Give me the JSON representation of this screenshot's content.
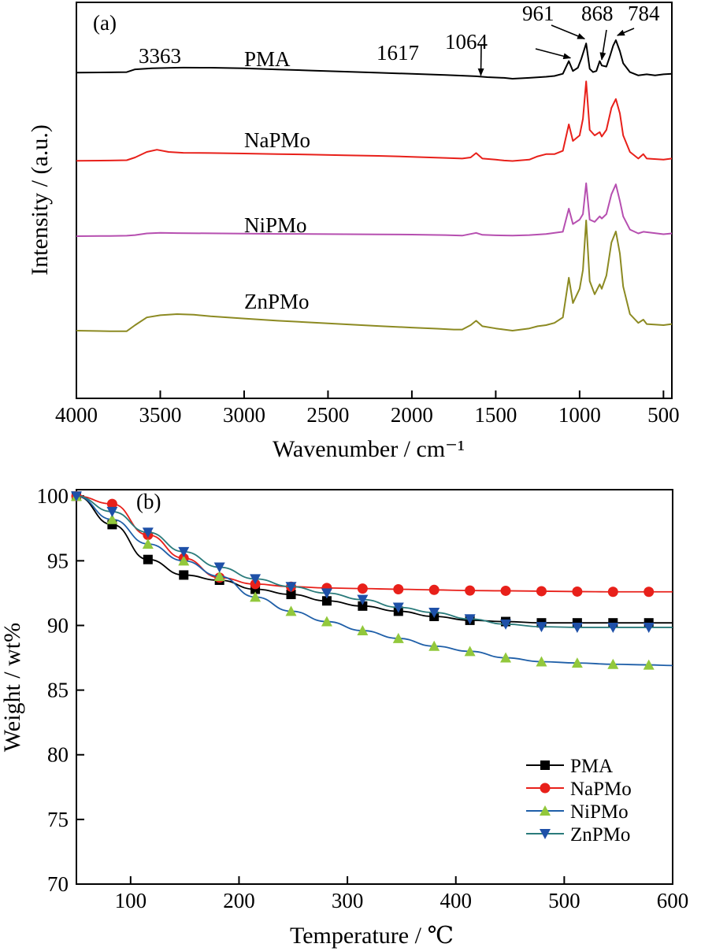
{
  "chart_data": [
    {
      "type": "line",
      "panel_label": "(a)",
      "xlabel": "Wavenumber / cm⁻¹",
      "ylabel": "Intensity / (a.u.)",
      "xlim": [
        4000,
        450
      ],
      "x_reversed": true,
      "x_ticks": [
        4000,
        3500,
        3000,
        2500,
        2000,
        1500,
        1000,
        500
      ],
      "y_ticks_shown": false,
      "grid": false,
      "legend": "none",
      "peak_annotations": [
        {
          "label": "3363",
          "wavenumber": 3363
        },
        {
          "label": "1617",
          "wavenumber": 1617
        },
        {
          "label": "1064",
          "wavenumber": 1064
        },
        {
          "label": "961",
          "wavenumber": 961
        },
        {
          "label": "868",
          "wavenumber": 868
        },
        {
          "label": "784",
          "wavenumber": 784
        }
      ],
      "series": [
        {
          "name": "PMA",
          "color": "#000000",
          "points": [
            [
              4000,
              0.055
            ],
            [
              3800,
              0.058
            ],
            [
              3700,
              0.06
            ],
            [
              3650,
              0.085
            ],
            [
              3550,
              0.095
            ],
            [
              3400,
              0.1
            ],
            [
              3363,
              0.101
            ],
            [
              3200,
              0.1
            ],
            [
              3000,
              0.094
            ],
            [
              2800,
              0.084
            ],
            [
              2600,
              0.074
            ],
            [
              2400,
              0.064
            ],
            [
              2200,
              0.054
            ],
            [
              2000,
              0.044
            ],
            [
              1800,
              0.034
            ],
            [
              1700,
              0.028
            ],
            [
              1617,
              0.022
            ],
            [
              1550,
              0.014
            ],
            [
              1450,
              0.008
            ],
            [
              1400,
              0.0
            ],
            [
              1300,
              0.008
            ],
            [
              1200,
              0.018
            ],
            [
              1150,
              0.025
            ],
            [
              1100,
              0.045
            ],
            [
              1064,
              0.16
            ],
            [
              1040,
              0.07
            ],
            [
              1010,
              0.1
            ],
            [
              990,
              0.18
            ],
            [
              961,
              0.32
            ],
            [
              940,
              0.09
            ],
            [
              920,
              0.06
            ],
            [
              900,
              0.07
            ],
            [
              880,
              0.16
            ],
            [
              868,
              0.12
            ],
            [
              840,
              0.11
            ],
            [
              820,
              0.2
            ],
            [
              800,
              0.3
            ],
            [
              784,
              0.35
            ],
            [
              760,
              0.25
            ],
            [
              740,
              0.14
            ],
            [
              700,
              0.06
            ],
            [
              650,
              0.03
            ],
            [
              600,
              0.04
            ],
            [
              550,
              0.03
            ],
            [
              500,
              0.04
            ],
            [
              450,
              0.045
            ]
          ]
        },
        {
          "name": "NaPMo",
          "color": "#e8201a",
          "points": [
            [
              4000,
              0.02
            ],
            [
              3800,
              0.022
            ],
            [
              3700,
              0.025
            ],
            [
              3650,
              0.05
            ],
            [
              3580,
              0.1
            ],
            [
              3520,
              0.12
            ],
            [
              3450,
              0.1
            ],
            [
              3363,
              0.092
            ],
            [
              3200,
              0.09
            ],
            [
              3000,
              0.086
            ],
            [
              2800,
              0.081
            ],
            [
              2600,
              0.076
            ],
            [
              2400,
              0.07
            ],
            [
              2200,
              0.064
            ],
            [
              2000,
              0.056
            ],
            [
              1800,
              0.046
            ],
            [
              1700,
              0.04
            ],
            [
              1650,
              0.05
            ],
            [
              1617,
              0.09
            ],
            [
              1580,
              0.04
            ],
            [
              1500,
              0.03
            ],
            [
              1450,
              0.022
            ],
            [
              1400,
              0.018
            ],
            [
              1300,
              0.03
            ],
            [
              1250,
              0.06
            ],
            [
              1200,
              0.08
            ],
            [
              1150,
              0.08
            ],
            [
              1100,
              0.11
            ],
            [
              1064,
              0.35
            ],
            [
              1040,
              0.2
            ],
            [
              1000,
              0.25
            ],
            [
              980,
              0.4
            ],
            [
              961,
              0.74
            ],
            [
              940,
              0.3
            ],
            [
              910,
              0.25
            ],
            [
              880,
              0.28
            ],
            [
              868,
              0.24
            ],
            [
              840,
              0.3
            ],
            [
              810,
              0.5
            ],
            [
              784,
              0.58
            ],
            [
              760,
              0.45
            ],
            [
              740,
              0.25
            ],
            [
              700,
              0.1
            ],
            [
              650,
              0.04
            ],
            [
              620,
              0.08
            ],
            [
              600,
              0.04
            ],
            [
              500,
              0.03
            ],
            [
              450,
              0.04
            ]
          ]
        },
        {
          "name": "NiPMo",
          "color": "#b64fb0",
          "points": [
            [
              4000,
              0.0
            ],
            [
              3800,
              0.002
            ],
            [
              3700,
              0.004
            ],
            [
              3650,
              0.01
            ],
            [
              3580,
              0.025
            ],
            [
              3500,
              0.03
            ],
            [
              3400,
              0.028
            ],
            [
              3200,
              0.026
            ],
            [
              3000,
              0.023
            ],
            [
              2800,
              0.021
            ],
            [
              2600,
              0.02
            ],
            [
              2400,
              0.018
            ],
            [
              2200,
              0.016
            ],
            [
              2000,
              0.014
            ],
            [
              1800,
              0.01
            ],
            [
              1700,
              0.005
            ],
            [
              1617,
              0.03
            ],
            [
              1580,
              0.012
            ],
            [
              1500,
              0.008
            ],
            [
              1400,
              0.005
            ],
            [
              1300,
              0.01
            ],
            [
              1200,
              0.02
            ],
            [
              1100,
              0.04
            ],
            [
              1064,
              0.25
            ],
            [
              1040,
              0.11
            ],
            [
              1000,
              0.15
            ],
            [
              980,
              0.2
            ],
            [
              961,
              0.48
            ],
            [
              940,
              0.15
            ],
            [
              910,
              0.13
            ],
            [
              880,
              0.18
            ],
            [
              868,
              0.16
            ],
            [
              840,
              0.2
            ],
            [
              810,
              0.38
            ],
            [
              784,
              0.47
            ],
            [
              760,
              0.32
            ],
            [
              740,
              0.18
            ],
            [
              700,
              0.06
            ],
            [
              650,
              0.025
            ],
            [
              620,
              0.04
            ],
            [
              500,
              0.018
            ],
            [
              450,
              0.025
            ]
          ]
        },
        {
          "name": "ZnPMo",
          "color": "#8c8a22",
          "points": [
            [
              4000,
              0.0
            ],
            [
              3800,
              -0.005
            ],
            [
              3700,
              -0.005
            ],
            [
              3650,
              0.05
            ],
            [
              3580,
              0.12
            ],
            [
              3500,
              0.14
            ],
            [
              3400,
              0.15
            ],
            [
              3300,
              0.145
            ],
            [
              3200,
              0.13
            ],
            [
              3000,
              0.11
            ],
            [
              2800,
              0.09
            ],
            [
              2600,
              0.074
            ],
            [
              2400,
              0.058
            ],
            [
              2200,
              0.042
            ],
            [
              2000,
              0.028
            ],
            [
              1850,
              0.018
            ],
            [
              1750,
              0.01
            ],
            [
              1700,
              0.01
            ],
            [
              1650,
              0.05
            ],
            [
              1617,
              0.09
            ],
            [
              1580,
              0.04
            ],
            [
              1500,
              0.02
            ],
            [
              1450,
              0.01
            ],
            [
              1400,
              0.0
            ],
            [
              1300,
              0.02
            ],
            [
              1250,
              0.04
            ],
            [
              1200,
              0.05
            ],
            [
              1150,
              0.07
            ],
            [
              1100,
              0.12
            ],
            [
              1064,
              0.48
            ],
            [
              1040,
              0.25
            ],
            [
              1000,
              0.38
            ],
            [
              980,
              0.55
            ],
            [
              961,
              1.0
            ],
            [
              940,
              0.45
            ],
            [
              910,
              0.33
            ],
            [
              880,
              0.42
            ],
            [
              868,
              0.38
            ],
            [
              840,
              0.5
            ],
            [
              810,
              0.8
            ],
            [
              784,
              0.9
            ],
            [
              760,
              0.7
            ],
            [
              740,
              0.4
            ],
            [
              700,
              0.15
            ],
            [
              650,
              0.07
            ],
            [
              620,
              0.1
            ],
            [
              600,
              0.06
            ],
            [
              500,
              0.05
            ],
            [
              450,
              0.06
            ]
          ]
        }
      ]
    },
    {
      "type": "line",
      "panel_label": "(b)",
      "xlabel": "Temperature / ℃",
      "ylabel": "Weight / wt%",
      "xlim": [
        50,
        600
      ],
      "ylim": [
        70,
        100.5
      ],
      "x_ticks": [
        100,
        200,
        300,
        400,
        500,
        600
      ],
      "y_ticks": [
        70,
        75,
        80,
        85,
        90,
        95,
        100
      ],
      "grid": false,
      "legend": "bottom-right",
      "series": [
        {
          "name": "PMA",
          "color": "#000000",
          "marker": "square",
          "x": [
            50,
            83,
            116,
            149,
            182,
            215,
            248,
            281,
            314,
            347,
            380,
            413,
            446,
            479,
            512,
            545,
            578,
            600
          ],
          "y": [
            100,
            97.8,
            95.1,
            93.9,
            93.5,
            92.8,
            92.4,
            91.9,
            91.5,
            91.1,
            90.7,
            90.4,
            90.3,
            90.2,
            90.2,
            90.2,
            90.2,
            90.2
          ]
        },
        {
          "name": "NaPMo",
          "color": "#e8201a",
          "marker": "circle",
          "x": [
            50,
            83,
            116,
            149,
            182,
            215,
            248,
            281,
            314,
            347,
            380,
            413,
            446,
            479,
            512,
            545,
            578,
            600
          ],
          "y": [
            100,
            99.4,
            97,
            95.2,
            93.7,
            93.2,
            93,
            92.9,
            92.85,
            92.8,
            92.75,
            92.7,
            92.68,
            92.65,
            92.62,
            92.6,
            92.6,
            92.6
          ]
        },
        {
          "name": "NiPMo",
          "color": "#1f5fa8",
          "marker_color": "#92c83c",
          "marker": "triangle-up",
          "x": [
            50,
            83,
            116,
            149,
            182,
            215,
            248,
            281,
            314,
            347,
            380,
            413,
            446,
            479,
            512,
            545,
            578,
            600
          ],
          "y": [
            100,
            98.2,
            96.3,
            95,
            93.8,
            92.2,
            91.1,
            90.3,
            89.6,
            89,
            88.4,
            88,
            87.5,
            87.2,
            87.1,
            87,
            86.95,
            86.9
          ]
        },
        {
          "name": "ZnPMo",
          "color": "#2a7b7b",
          "marker_color": "#1e50a8",
          "marker": "triangle-down",
          "x": [
            50,
            83,
            116,
            149,
            182,
            215,
            248,
            281,
            314,
            347,
            380,
            413,
            446,
            479,
            512,
            545,
            578,
            600
          ],
          "y": [
            100,
            98.8,
            97.2,
            95.7,
            94.5,
            93.6,
            93,
            92.5,
            92,
            91.4,
            91,
            90.5,
            90.1,
            89.9,
            89.85,
            89.85,
            89.85,
            89.85
          ]
        }
      ]
    }
  ]
}
